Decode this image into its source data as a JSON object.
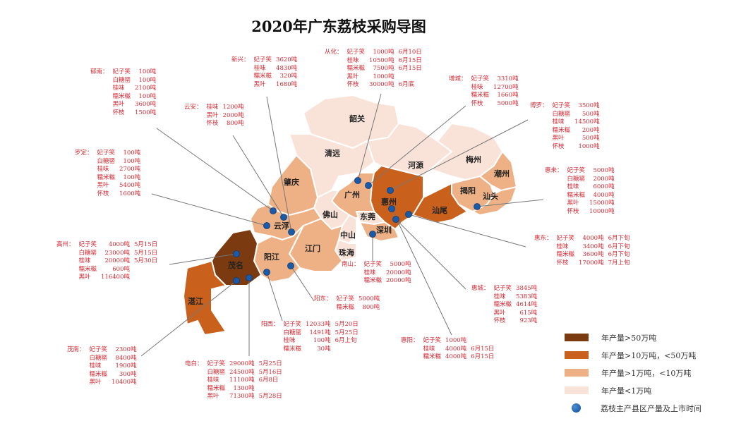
{
  "title": "2020年广东荔枝采购导图",
  "colors": {
    "tier1": "#7b3a10",
    "tier2": "#c9611c",
    "tier3": "#eeb185",
    "tier4": "#f9e3d8",
    "marker": "#1a5aa6",
    "annotation_text": "#d22a33"
  },
  "legend": [
    {
      "tier": "tier1",
      "label": "年产量>50万吨"
    },
    {
      "tier": "tier2",
      "label": "年产量>10万吨，<50万吨"
    },
    {
      "tier": "tier3",
      "label": "年产量>1万吨，<10万吨"
    },
    {
      "tier": "tier4",
      "label": "年产量<1万吨"
    },
    {
      "tier": "marker",
      "label": "荔枝主产县区产量及上市时间"
    }
  ],
  "cities": [
    {
      "name": "韶关",
      "tier": "tier4"
    },
    {
      "name": "清远",
      "tier": "tier4"
    },
    {
      "name": "河源",
      "tier": "tier4"
    },
    {
      "name": "梅州",
      "tier": "tier4"
    },
    {
      "name": "潮州",
      "tier": "tier3"
    },
    {
      "name": "揭阳",
      "tier": "tier3"
    },
    {
      "name": "汕头",
      "tier": "tier3"
    },
    {
      "name": "汕尾",
      "tier": "tier2"
    },
    {
      "name": "惠州",
      "tier": "tier2"
    },
    {
      "name": "广州",
      "tier": "tier3"
    },
    {
      "name": "东莞",
      "tier": "tier4"
    },
    {
      "name": "深圳",
      "tier": "tier3"
    },
    {
      "name": "佛山",
      "tier": "tier4"
    },
    {
      "name": "中山",
      "tier": "tier4"
    },
    {
      "name": "珠海",
      "tier": "tier4"
    },
    {
      "name": "江门",
      "tier": "tier3"
    },
    {
      "name": "肇庆",
      "tier": "tier3"
    },
    {
      "name": "云浮",
      "tier": "tier3"
    },
    {
      "name": "阳江",
      "tier": "tier3"
    },
    {
      "name": "茂名",
      "tier": "tier1"
    },
    {
      "name": "湛江",
      "tier": "tier2"
    }
  ],
  "annotations": [
    {
      "county": "郁南：",
      "rows": [
        [
          "妃子笑",
          "100吨",
          ""
        ],
        [
          "白糖罂",
          "100吨",
          ""
        ],
        [
          "桂味",
          "2100吨",
          ""
        ],
        [
          "糯米糍",
          "100吨",
          ""
        ],
        [
          "黑叶",
          "3600吨",
          ""
        ],
        [
          "怀枝",
          "1500吨",
          ""
        ]
      ]
    },
    {
      "county": "新兴：",
      "rows": [
        [
          "妃子笑",
          "3620吨",
          ""
        ],
        [
          "桂味",
          "4830吨",
          ""
        ],
        [
          "糯米糍",
          "320吨",
          ""
        ],
        [
          "黑叶",
          "1680吨",
          ""
        ]
      ]
    },
    {
      "county": "云安：",
      "rows": [
        [
          "桂味",
          "1200吨",
          ""
        ],
        [
          "黑叶",
          "2000吨",
          ""
        ],
        [
          "怀枝",
          "800吨",
          ""
        ]
      ]
    },
    {
      "county": "罗定：",
      "rows": [
        [
          "妃子笑",
          "100吨",
          ""
        ],
        [
          "白糖罂",
          "100吨",
          ""
        ],
        [
          "桂味",
          "2700吨",
          ""
        ],
        [
          "糯米糍",
          "100吨",
          ""
        ],
        [
          "黑叶",
          "5400吨",
          ""
        ],
        [
          "怀枝",
          "1600吨",
          ""
        ]
      ]
    },
    {
      "county": "从化：",
      "rows": [
        [
          "妃子笑",
          "1000吨",
          "6月10日"
        ],
        [
          "桂味",
          "10500吨",
          "6月15日"
        ],
        [
          "糯米糍",
          "7500吨",
          "6月15日"
        ],
        [
          "黑叶",
          "1000吨",
          ""
        ],
        [
          "怀枝",
          "30000吨",
          "6月底"
        ]
      ]
    },
    {
      "county": "增城：",
      "rows": [
        [
          "妃子笑",
          "3310吨",
          ""
        ],
        [
          "桂味",
          "12700吨",
          ""
        ],
        [
          "糯米糍",
          "1660吨",
          ""
        ],
        [
          "怀枝",
          "5000吨",
          ""
        ]
      ]
    },
    {
      "county": "博罗：",
      "rows": [
        [
          "妃子笑",
          "3500吨",
          ""
        ],
        [
          "白糖罂",
          "500吨",
          ""
        ],
        [
          "桂味",
          "14500吨",
          ""
        ],
        [
          "糯米糍",
          "200吨",
          ""
        ],
        [
          "黑叶",
          "500吨",
          ""
        ],
        [
          "怀枝",
          "1000吨",
          ""
        ]
      ]
    },
    {
      "county": "惠来：",
      "rows": [
        [
          "妃子笑",
          "5000吨",
          ""
        ],
        [
          "白糖罂",
          "2000吨",
          ""
        ],
        [
          "桂味",
          "6000吨",
          ""
        ],
        [
          "糯米糍",
          "4000吨",
          ""
        ],
        [
          "黑叶",
          "15000吨",
          ""
        ],
        [
          "怀枝",
          "10000吨",
          ""
        ]
      ]
    },
    {
      "county": "惠东：",
      "rows": [
        [
          "妃子笑",
          "4000吨",
          "6月下旬"
        ],
        [
          "桂味",
          "3400吨",
          "6月下旬"
        ],
        [
          "糯米糍",
          "3600吨",
          "6月下旬"
        ],
        [
          "怀枝",
          "17000吨",
          "7月上旬"
        ]
      ]
    },
    {
      "county": "高州：",
      "rows": [
        [
          "妃子笑",
          "4000吨",
          "5月15日"
        ],
        [
          "白糖罂",
          "23000吨",
          "5月15日"
        ],
        [
          "桂味",
          "20000吨",
          "5月30日"
        ],
        [
          "糯米糍",
          "600吨",
          ""
        ],
        [
          "黑叶",
          "116400吨",
          ""
        ]
      ]
    },
    {
      "county": "茂南：",
      "rows": [
        [
          "妃子笑",
          "2300吨",
          ""
        ],
        [
          "白糖罂",
          "8400吨",
          ""
        ],
        [
          "桂味",
          "1900吨",
          ""
        ],
        [
          "糯米糍",
          "300吨",
          ""
        ],
        [
          "黑叶",
          "10400吨",
          ""
        ]
      ]
    },
    {
      "county": "电白：",
      "rows": [
        [
          "妃子笑",
          "29000吨",
          "5月25日"
        ],
        [
          "白糖罂",
          "24500吨",
          "5月16日"
        ],
        [
          "桂味",
          "11100吨",
          "6月8日"
        ],
        [
          "糯米糍",
          "1300吨",
          ""
        ],
        [
          "黑叶",
          "71300吨",
          "5月28日"
        ]
      ]
    },
    {
      "county": "阳西：",
      "rows": [
        [
          "妃子笑",
          "12033吨",
          "5月20日"
        ],
        [
          "白糖罂",
          "1491吨",
          "5月25日"
        ],
        [
          "桂味",
          "100吨",
          "6月上旬"
        ],
        [
          "糯米糍",
          "30吨",
          ""
        ]
      ]
    },
    {
      "county": "阳东：",
      "rows": [
        [
          "妃子笑",
          "5000吨",
          ""
        ],
        [
          "糯米糍",
          "800吨",
          ""
        ]
      ]
    },
    {
      "county": "南山：",
      "rows": [
        [
          "妃子笑",
          "5000吨",
          ""
        ],
        [
          "桂味",
          "20000吨",
          ""
        ],
        [
          "糯米糍",
          "20000吨",
          ""
        ]
      ]
    },
    {
      "county": "惠城：",
      "rows": [
        [
          "妃子笑",
          "3845吨",
          ""
        ],
        [
          "桂味",
          "5383吨",
          ""
        ],
        [
          "糯米糍",
          "4614吨",
          ""
        ],
        [
          "黑叶",
          "615吨",
          ""
        ],
        [
          "怀枝",
          "923吨",
          ""
        ]
      ]
    },
    {
      "county": "惠阳：",
      "rows": [
        [
          "妃子笑",
          "1000吨",
          ""
        ],
        [
          "桂味",
          "4000吨",
          "6月15日"
        ],
        [
          "糯米糍",
          "4000吨",
          "6月15日"
        ]
      ]
    }
  ]
}
